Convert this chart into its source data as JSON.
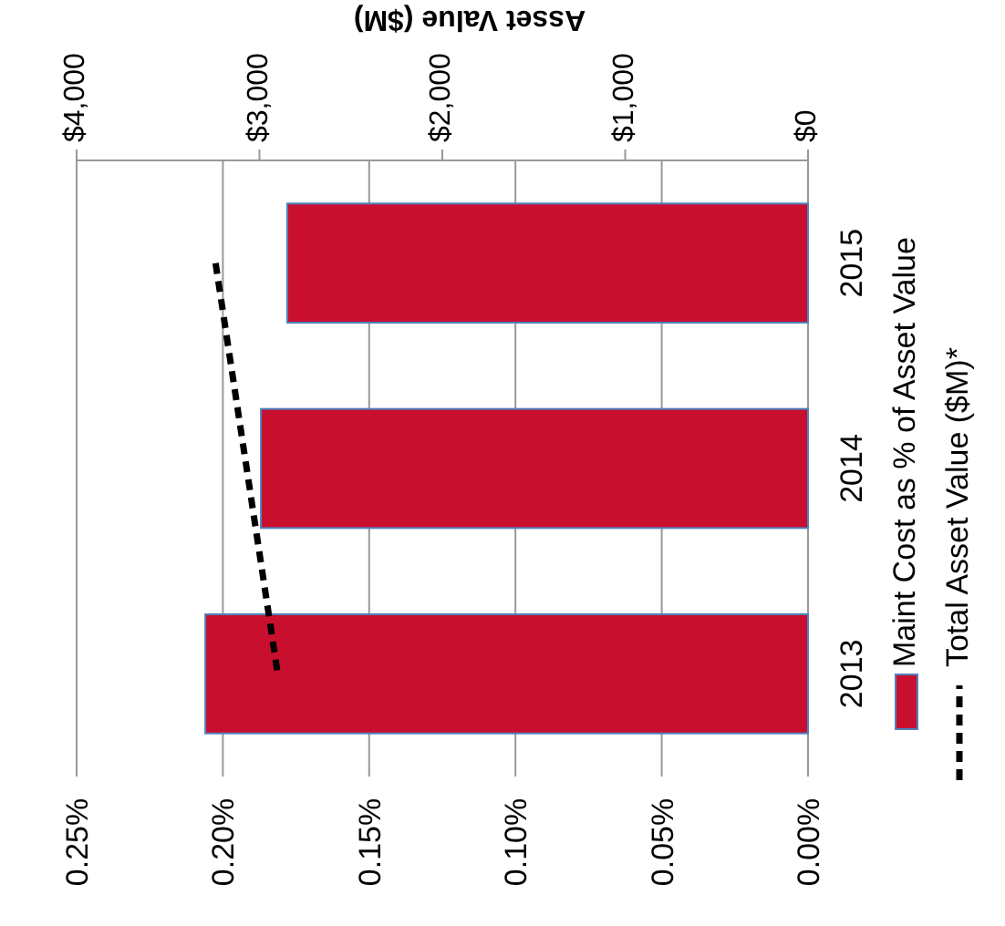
{
  "chart_data": {
    "type": "bar",
    "orientation": "horizontal",
    "categories": [
      "2015",
      "2014",
      "2013"
    ],
    "series": [
      {
        "name": "Maint Cost as % of Asset Value",
        "color": "#c8102e",
        "values": [
          0.178,
          0.187,
          0.206
        ]
      },
      {
        "name": "Total Asset Value ($M)*",
        "type": "line",
        "axis": "x2",
        "color": "#000000",
        "line_style": "dashed",
        "marker": "none",
        "values": [
          3240,
          3070,
          2900
        ]
      }
    ],
    "xlim": [
      0.25,
      0
    ],
    "xticks": [
      {
        "value": 0.25,
        "label": "0.25%"
      },
      {
        "value": 0.2,
        "label": "0.20%"
      },
      {
        "value": 0.15,
        "label": "0.15%"
      },
      {
        "value": 0.1,
        "label": "0.10%"
      },
      {
        "value": 0.05,
        "label": "0.05%"
      },
      {
        "value": 0,
        "label": "0.00%"
      }
    ],
    "x2lim": [
      4000,
      0
    ],
    "x2ticks": [
      {
        "value": 4000,
        "label": "$4,000"
      },
      {
        "value": 3000,
        "label": "$3,000"
      },
      {
        "value": 2000,
        "label": "$2,000"
      },
      {
        "value": 1000,
        "label": "$1,000"
      },
      {
        "value": 0,
        "label": "$0"
      }
    ],
    "x2label": "Asset Value ($M)",
    "grid": "x",
    "legend": "right"
  }
}
